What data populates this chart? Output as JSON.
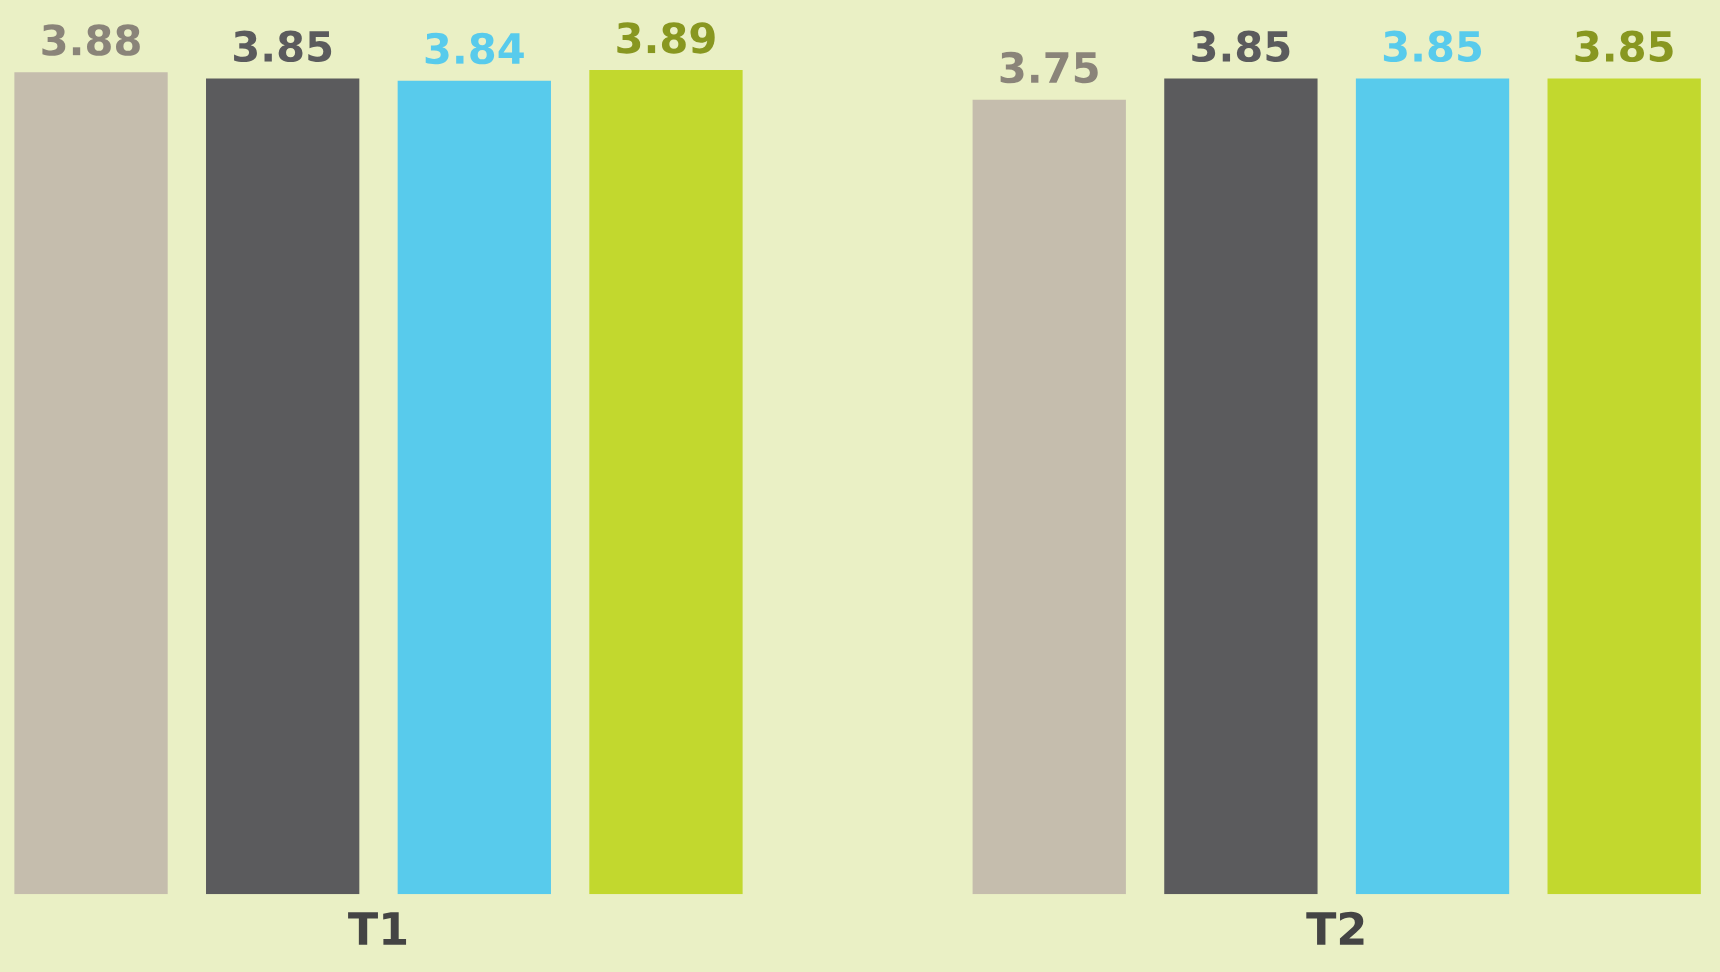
{
  "chart_data": {
    "type": "bar",
    "categories": [
      "T1",
      "T2"
    ],
    "series": [
      {
        "color": "#c5bdad",
        "values": [
          3.88,
          3.75
        ]
      },
      {
        "color": "#5b5b5d",
        "values": [
          3.85,
          3.85
        ]
      },
      {
        "color": "#58cbec",
        "values": [
          3.84,
          3.85
        ]
      },
      {
        "color": "#c2d82e",
        "values": [
          3.89,
          3.85
        ]
      }
    ],
    "data_labels": true,
    "tick_labels": "x",
    "grid": false,
    "legend": false
  }
}
